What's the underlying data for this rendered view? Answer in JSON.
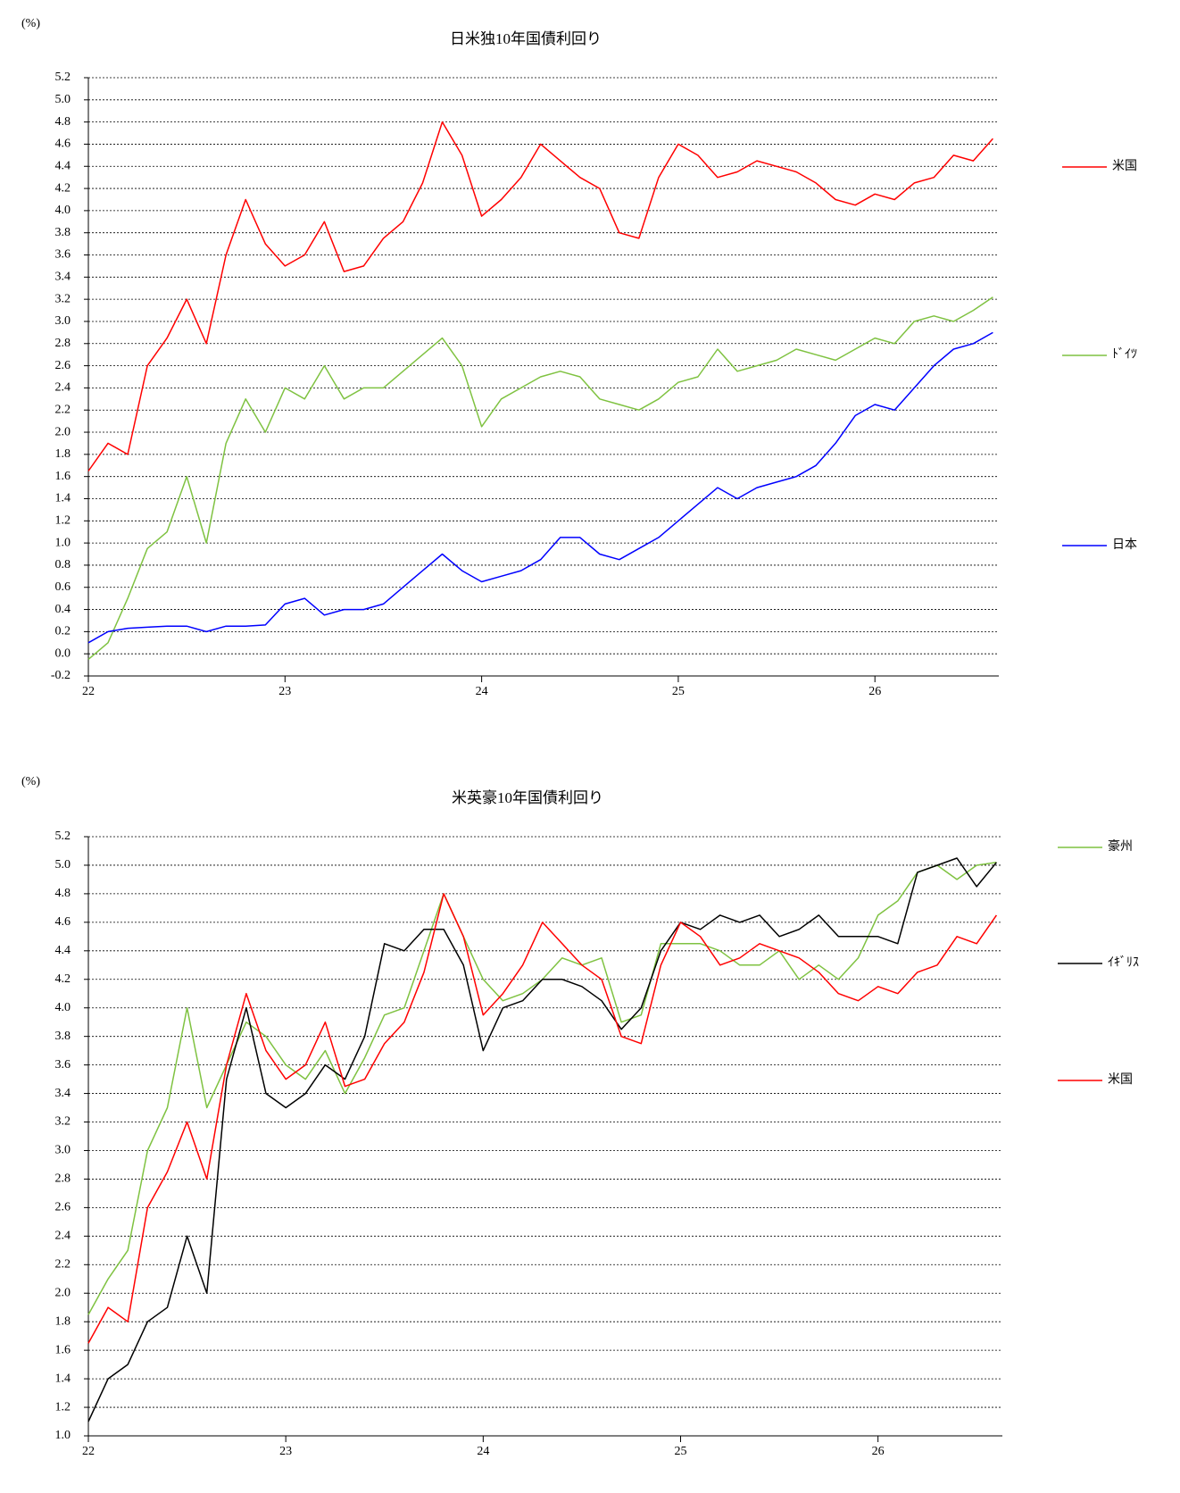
{
  "chart_data": [
    {
      "type": "line",
      "title": "日米独10年国債利回り",
      "y_unit": "(%)",
      "legend": "right",
      "grid": true,
      "x": [
        22,
        22.1,
        22.2,
        22.3,
        22.4,
        22.5,
        22.6,
        22.7,
        22.8,
        22.9,
        23,
        23.1,
        23.2,
        23.3,
        23.4,
        23.5,
        23.6,
        23.7,
        23.8,
        23.9,
        24,
        24.1,
        24.2,
        24.3,
        24.4,
        24.5,
        24.6,
        24.7,
        24.8,
        24.9,
        25,
        25.1,
        25.2,
        25.3,
        25.4,
        25.5,
        25.6,
        25.7,
        25.8,
        25.9,
        26,
        26.1,
        26.2,
        26.3,
        26.4,
        26.5,
        26.6
      ],
      "xlim": [
        22,
        26.63
      ],
      "xticks": [
        22,
        23,
        24,
        25,
        26
      ],
      "ylim": [
        -0.2,
        5.2
      ],
      "yticks": [
        -0.2,
        {
          "value": 0,
          "label": "0.0"
        },
        0.2,
        0.4,
        0.6,
        0.8,
        {
          "value": 1,
          "label": "1.0"
        },
        1.2,
        1.4,
        1.6,
        1.8,
        {
          "value": 2,
          "label": "2.0"
        },
        2.2,
        2.4,
        2.6,
        2.8,
        {
          "value": 3,
          "label": "3.0"
        },
        3.2,
        3.4,
        3.6,
        3.8,
        {
          "value": 4,
          "label": "4.0"
        },
        4.2,
        4.4,
        4.6,
        4.8,
        {
          "value": 5,
          "label": "5.0"
        },
        5.2
      ],
      "series": [
        {
          "name": "米国",
          "color": "#ff0000",
          "values": [
            1.65,
            1.9,
            1.8,
            2.6,
            2.85,
            3.2,
            2.8,
            3.6,
            4.1,
            3.7,
            3.5,
            3.6,
            3.9,
            3.45,
            3.5,
            3.75,
            3.9,
            4.25,
            4.8,
            4.5,
            3.95,
            4.1,
            4.3,
            4.6,
            4.45,
            4.3,
            4.2,
            3.8,
            3.75,
            4.3,
            4.6,
            4.5,
            4.3,
            4.35,
            4.45,
            4.4,
            4.35,
            4.25,
            4.1,
            4.05,
            4.15,
            4.1,
            4.25,
            4.3,
            4.5,
            4.45,
            4.65
          ]
        },
        {
          "name": "ﾄﾞｲﾂ",
          "color": "#7fc241",
          "values": [
            -0.05,
            0.1,
            0.5,
            0.95,
            1.1,
            1.6,
            1,
            1.9,
            2.3,
            2,
            2.4,
            2.3,
            2.6,
            2.3,
            2.4,
            2.4,
            2.55,
            2.7,
            2.85,
            2.6,
            2.05,
            2.3,
            2.4,
            2.5,
            2.55,
            2.5,
            2.3,
            2.25,
            2.2,
            2.3,
            2.45,
            2.5,
            2.75,
            2.55,
            2.6,
            2.65,
            2.75,
            2.7,
            2.65,
            2.75,
            2.85,
            2.8,
            3,
            3.05,
            3,
            3.1,
            3.22
          ]
        },
        {
          "name": "日本",
          "color": "#0000ff",
          "values": [
            0.1,
            0.2,
            0.23,
            0.24,
            0.25,
            0.25,
            0.2,
            0.25,
            0.25,
            0.26,
            0.45,
            0.5,
            0.35,
            0.4,
            0.4,
            0.45,
            0.6,
            0.75,
            0.9,
            0.75,
            0.65,
            0.7,
            0.75,
            0.85,
            1.05,
            1.05,
            0.9,
            0.85,
            0.95,
            1.05,
            1.2,
            1.35,
            1.5,
            1.4,
            1.5,
            1.55,
            1.6,
            1.7,
            1.9,
            2.15,
            2.25,
            2.2,
            2.4,
            2.6,
            2.75,
            2.8,
            2.9
          ]
        }
      ]
    },
    {
      "type": "line",
      "title": "米英豪10年国債利回り",
      "y_unit": "(%)",
      "legend": "right",
      "grid": true,
      "x": [
        22,
        22.1,
        22.2,
        22.3,
        22.4,
        22.5,
        22.6,
        22.7,
        22.8,
        22.9,
        23,
        23.1,
        23.2,
        23.3,
        23.4,
        23.5,
        23.6,
        23.7,
        23.8,
        23.9,
        24,
        24.1,
        24.2,
        24.3,
        24.4,
        24.5,
        24.6,
        24.7,
        24.8,
        24.9,
        25,
        25.1,
        25.2,
        25.3,
        25.4,
        25.5,
        25.6,
        25.7,
        25.8,
        25.9,
        26,
        26.1,
        26.2,
        26.3,
        26.4,
        26.5,
        26.6
      ],
      "xlim": [
        22,
        26.63
      ],
      "xticks": [
        22,
        23,
        24,
        25,
        26
      ],
      "ylim": [
        1,
        5.2
      ],
      "yticks": [
        {
          "value": 1,
          "label": "1.0"
        },
        1.2,
        1.4,
        1.6,
        1.8,
        {
          "value": 2,
          "label": "2.0"
        },
        2.2,
        2.4,
        2.6,
        2.8,
        {
          "value": 3,
          "label": "3.0"
        },
        3.2,
        3.4,
        3.6,
        3.8,
        {
          "value": 4,
          "label": "4.0"
        },
        4.2,
        4.4,
        4.6,
        4.8,
        {
          "value": 5,
          "label": "5.0"
        },
        5.2
      ],
      "series": [
        {
          "name": "豪州",
          "color": "#7fc241",
          "values": [
            1.85,
            2.1,
            2.3,
            3,
            3.3,
            4,
            3.3,
            3.6,
            3.9,
            3.8,
            3.6,
            3.5,
            3.7,
            3.4,
            3.65,
            3.95,
            4,
            4.4,
            4.8,
            4.5,
            4.2,
            4.05,
            4.1,
            4.2,
            4.35,
            4.3,
            4.35,
            3.9,
            3.95,
            4.45,
            4.45,
            4.45,
            4.4,
            4.3,
            4.3,
            4.4,
            4.2,
            4.3,
            4.2,
            4.35,
            4.65,
            4.75,
            4.95,
            5,
            4.9,
            5,
            5.02
          ]
        },
        {
          "name": "ｲｷﾞﾘｽ",
          "color": "#000000",
          "values": [
            1.1,
            1.4,
            1.5,
            1.8,
            1.9,
            2.4,
            2,
            3.5,
            4,
            3.4,
            3.3,
            3.4,
            3.6,
            3.5,
            3.8,
            4.45,
            4.4,
            4.55,
            4.55,
            4.3,
            3.7,
            4,
            4.05,
            4.2,
            4.2,
            4.15,
            4.05,
            3.85,
            4,
            4.4,
            4.6,
            4.55,
            4.65,
            4.6,
            4.65,
            4.5,
            4.55,
            4.65,
            4.5,
            4.5,
            4.5,
            4.45,
            4.95,
            5,
            5.05,
            4.85,
            5.02
          ]
        },
        {
          "name": "米国",
          "color": "#ff0000",
          "values": [
            1.65,
            1.9,
            1.8,
            2.6,
            2.85,
            3.2,
            2.8,
            3.6,
            4.1,
            3.7,
            3.5,
            3.6,
            3.9,
            3.45,
            3.5,
            3.75,
            3.9,
            4.25,
            4.8,
            4.5,
            3.95,
            4.1,
            4.3,
            4.6,
            4.45,
            4.3,
            4.2,
            3.8,
            3.75,
            4.3,
            4.6,
            4.5,
            4.3,
            4.35,
            4.45,
            4.4,
            4.35,
            4.25,
            4.1,
            4.05,
            4.15,
            4.1,
            4.25,
            4.3,
            4.5,
            4.45,
            4.65
          ]
        }
      ]
    }
  ]
}
